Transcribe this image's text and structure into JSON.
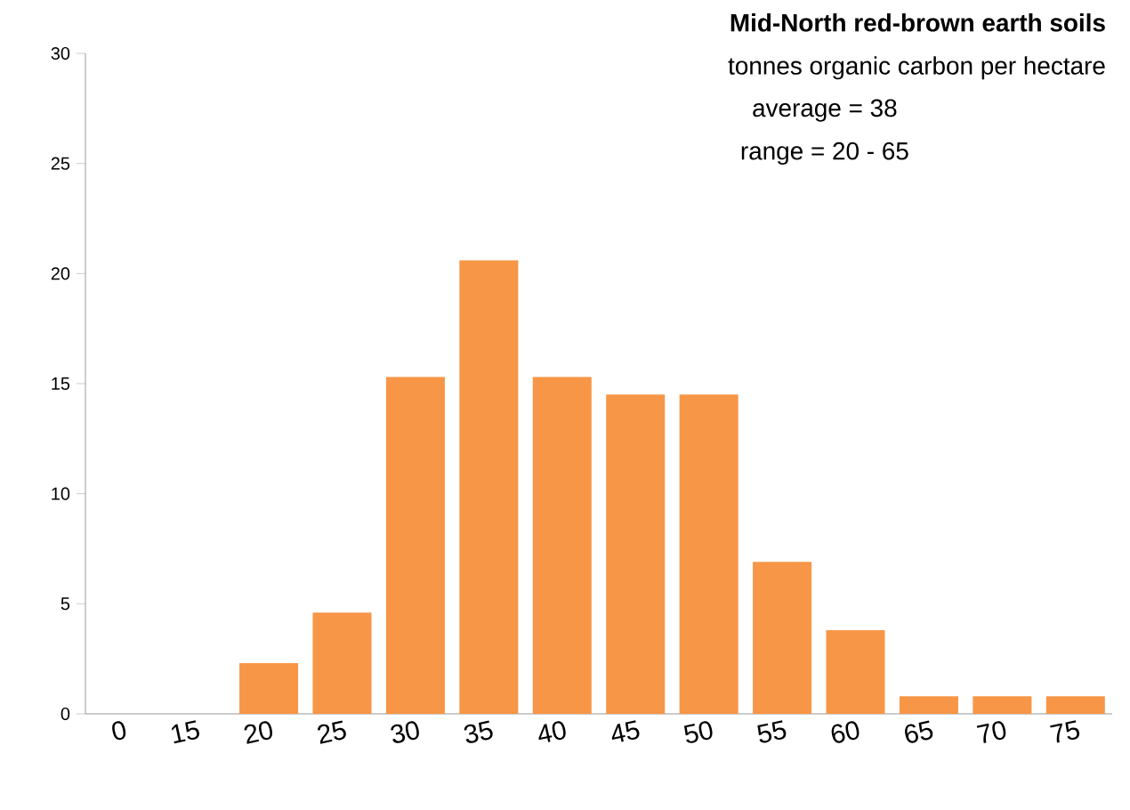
{
  "chart_data": {
    "type": "bar",
    "title": "Mid-North red-brown earth soils",
    "subtitle": "tonnes organic carbon per hectare",
    "annotations": [
      "average  = 38",
      "range  = 20 - 65"
    ],
    "categories": [
      "0",
      "15",
      "20",
      "25",
      "30",
      "35",
      "40",
      "45",
      "50",
      "55",
      "60",
      "65",
      "70",
      "75"
    ],
    "values": [
      0,
      0,
      2.3,
      4.6,
      15.3,
      20.6,
      15.3,
      14.5,
      14.5,
      6.9,
      3.8,
      0.8,
      0.8,
      0.8
    ],
    "color": "#f79646",
    "ylim": [
      0,
      30
    ],
    "yticks": [
      0,
      5,
      10,
      15,
      20,
      25,
      30
    ]
  }
}
